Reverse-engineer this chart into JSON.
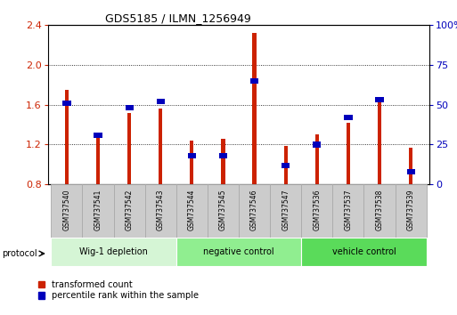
{
  "title": "GDS5185 / ILMN_1256949",
  "samples": [
    "GSM737540",
    "GSM737541",
    "GSM737542",
    "GSM737543",
    "GSM737544",
    "GSM737545",
    "GSM737546",
    "GSM737547",
    "GSM737536",
    "GSM737537",
    "GSM737538",
    "GSM737539"
  ],
  "red_values": [
    1.75,
    1.3,
    1.52,
    1.56,
    1.24,
    1.26,
    2.32,
    1.19,
    1.3,
    1.42,
    1.62,
    1.17
  ],
  "blue_values_pct": [
    51,
    31,
    48,
    52,
    18,
    18,
    65,
    12,
    25,
    42,
    53,
    8
  ],
  "groups": [
    {
      "label": "Wig-1 depletion",
      "start": 0,
      "end": 4,
      "color": "#d5f5d5"
    },
    {
      "label": "negative control",
      "start": 4,
      "end": 8,
      "color": "#90ee90"
    },
    {
      "label": "vehicle control",
      "start": 8,
      "end": 12,
      "color": "#5adb5a"
    }
  ],
  "ylim_left": [
    0.8,
    2.4
  ],
  "yticks_left": [
    0.8,
    1.2,
    1.6,
    2.0,
    2.4
  ],
  "ylim_right": [
    0,
    100
  ],
  "yticks_right": [
    0,
    25,
    50,
    75,
    100
  ],
  "ytick_labels_right": [
    "0",
    "25",
    "50",
    "75",
    "100%"
  ],
  "red_color": "#cc2200",
  "blue_color": "#0000bb",
  "bar_width": 0.12,
  "baseline": 0.8,
  "bg_color": "#ffffff",
  "label_box_color": "#cccccc",
  "label_box_edge": "#aaaaaa"
}
